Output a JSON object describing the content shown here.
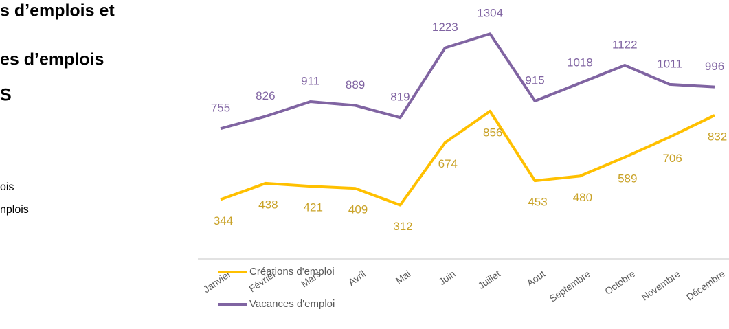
{
  "side_text": {
    "headings": [
      "s d’emplois et",
      "es d’emplois",
      "S"
    ],
    "notes": [
      "ois",
      "nplois"
    ]
  },
  "chart_data": {
    "type": "line",
    "categories": [
      "Janvier",
      "Février",
      "Mars",
      "Avril",
      "Mai",
      "Juin",
      "Juillet",
      "Aout",
      "Septembre",
      "Octobre",
      "Novembre",
      "Décembre"
    ],
    "series": [
      {
        "name": "Créations d'emploi",
        "color": "#ffc000",
        "label_color": "#c9a227",
        "values": [
          344,
          438,
          421,
          409,
          312,
          674,
          856,
          453,
          480,
          589,
          706,
          832
        ]
      },
      {
        "name": "Vacances d'emploi",
        "color": "#8064a2",
        "label_color": "#8064a2",
        "values": [
          755,
          826,
          911,
          889,
          819,
          1223,
          1304,
          915,
          1018,
          1122,
          1011,
          996
        ]
      }
    ],
    "ylim": [
      0,
      1500
    ]
  }
}
